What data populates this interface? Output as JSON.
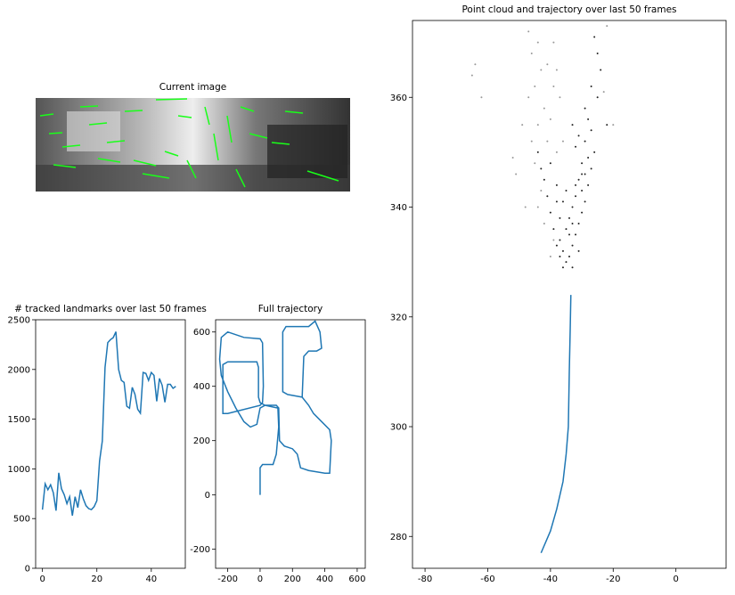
{
  "chart_data": [
    {
      "type": "image",
      "title": "Current image"
    },
    {
      "type": "line",
      "title": "# tracked landmarks over last 50 frames",
      "xlim": [
        -2.5,
        52.5
      ],
      "ylim": [
        0,
        2500
      ],
      "xticks": [
        0,
        20,
        40
      ],
      "yticks": [
        0,
        500,
        1000,
        1500,
        2000,
        2500
      ],
      "series": [
        {
          "color": "#1f77b4",
          "x": [
            0,
            1,
            2,
            3,
            4,
            5,
            6,
            7,
            8,
            9,
            10,
            11,
            12,
            13,
            14,
            15,
            16,
            17,
            18,
            19,
            20,
            21,
            22,
            23,
            24,
            25,
            26,
            27,
            28,
            29,
            30,
            31,
            32,
            33,
            34,
            35,
            36,
            37,
            38,
            39,
            40,
            41,
            42,
            43,
            44,
            45,
            46,
            47,
            48,
            49
          ],
          "y": [
            590,
            850,
            790,
            840,
            760,
            580,
            960,
            800,
            740,
            650,
            720,
            530,
            720,
            610,
            790,
            700,
            630,
            600,
            590,
            620,
            680,
            1080,
            1280,
            2020,
            2270,
            2300,
            2320,
            2380,
            2000,
            1890,
            1870,
            1630,
            1610,
            1820,
            1750,
            1600,
            1560,
            1970,
            1960,
            1890,
            1970,
            1940,
            1680,
            1910,
            1840,
            1670,
            1850,
            1850,
            1810,
            1830
          ]
        }
      ]
    },
    {
      "type": "line",
      "title": "Full trajectory",
      "xlim": [
        -275,
        650
      ],
      "ylim": [
        -270,
        645
      ],
      "xticks": [
        -200,
        0,
        200,
        400,
        600
      ],
      "yticks": [
        -200,
        0,
        200,
        400,
        600
      ],
      "series": [
        {
          "color": "#1f77b4",
          "x": [
            0,
            0,
            15,
            80,
            100,
            115,
            110,
            30,
            0,
            -20,
            -60,
            -100,
            -150,
            -200,
            -240,
            -250,
            -240,
            -200,
            -100,
            0,
            15,
            20,
            15,
            0,
            -200,
            -230,
            -230,
            -200,
            -20,
            -10,
            -10,
            0,
            30,
            100,
            115,
            120,
            150,
            200,
            230,
            250,
            300,
            400,
            430,
            440,
            430,
            380,
            330,
            300,
            260,
            170,
            140,
            140,
            160,
            300,
            340,
            370,
            380,
            350,
            300,
            270,
            260,
            170
          ],
          "y": [
            0,
            100,
            112,
            112,
            150,
            250,
            320,
            330,
            320,
            260,
            250,
            270,
            320,
            380,
            440,
            500,
            580,
            600,
            580,
            575,
            560,
            400,
            340,
            330,
            300,
            300,
            480,
            490,
            490,
            470,
            360,
            340,
            330,
            330,
            320,
            200,
            180,
            170,
            150,
            100,
            90,
            80,
            80,
            200,
            240,
            270,
            300,
            330,
            360,
            370,
            380,
            600,
            620,
            620,
            640,
            600,
            540,
            530,
            530,
            510,
            360,
            370
          ]
        }
      ]
    },
    {
      "type": "scatter",
      "title": "Point cloud and trajectory over last 50 frames",
      "xlim": [
        -84,
        16
      ],
      "ylim": [
        274.2,
        374
      ],
      "xticks": [
        -80,
        -60,
        -40,
        -20,
        0
      ],
      "yticks": [
        280,
        300,
        320,
        340,
        360
      ],
      "series": [
        {
          "kind": "points",
          "color": "#222222",
          "x": [
            -35,
            -34,
            -36,
            -33,
            -37,
            -32,
            -35,
            -31,
            -34,
            -30,
            -33,
            -29,
            -32,
            -30,
            -28,
            -31,
            -29,
            -27,
            -30,
            -28,
            -26,
            -29,
            -27,
            -28,
            -29,
            -25,
            -36,
            -38,
            -39,
            -40,
            -41,
            -42,
            -40,
            -38,
            -36,
            -34,
            -33,
            -31,
            -33,
            -37,
            -30,
            -32,
            -35,
            -37,
            -38,
            -43,
            -44,
            -32,
            -31,
            -33,
            -27,
            -24,
            -25,
            -22,
            -26
          ],
          "y": [
            330,
            331,
            332,
            333,
            334,
            335,
            336,
            337,
            338,
            339,
            340,
            341,
            342,
            343,
            344,
            345,
            346,
            347,
            348,
            349,
            350,
            352,
            354,
            356,
            358,
            360,
            329,
            333,
            336,
            339,
            342,
            345,
            348,
            344,
            341,
            335,
            337,
            332,
            329,
            331,
            346,
            344,
            343,
            338,
            341,
            347,
            350,
            351,
            353,
            355,
            362,
            365,
            368,
            355,
            371
          ]
        },
        {
          "kind": "points",
          "color": "#999999",
          "x": [
            -45,
            -46,
            -44,
            -47,
            -45,
            -43,
            -46,
            -44,
            -42,
            -41,
            -43,
            -44,
            -42,
            -39,
            -40,
            -38,
            -40,
            -39,
            -41,
            -47,
            -49,
            -51,
            -52,
            -48,
            -36,
            -37,
            -39,
            -38,
            -62,
            -64,
            -65,
            -22,
            -20,
            -23
          ],
          "y": [
            348,
            352,
            355,
            360,
            362,
            365,
            368,
            370,
            358,
            352,
            343,
            340,
            337,
            334,
            331,
            350,
            356,
            362,
            366,
            372,
            355,
            346,
            349,
            340,
            352,
            360,
            370,
            365,
            360,
            366,
            364,
            373,
            355,
            361
          ]
        },
        {
          "kind": "line",
          "color": "#1f77b4",
          "x": [
            -43,
            -40,
            -38,
            -36,
            -35,
            -34.3,
            -34,
            -33.7,
            -33.5
          ],
          "y": [
            277,
            281,
            285,
            290,
            295,
            300,
            310,
            318,
            324
          ]
        }
      ]
    }
  ]
}
